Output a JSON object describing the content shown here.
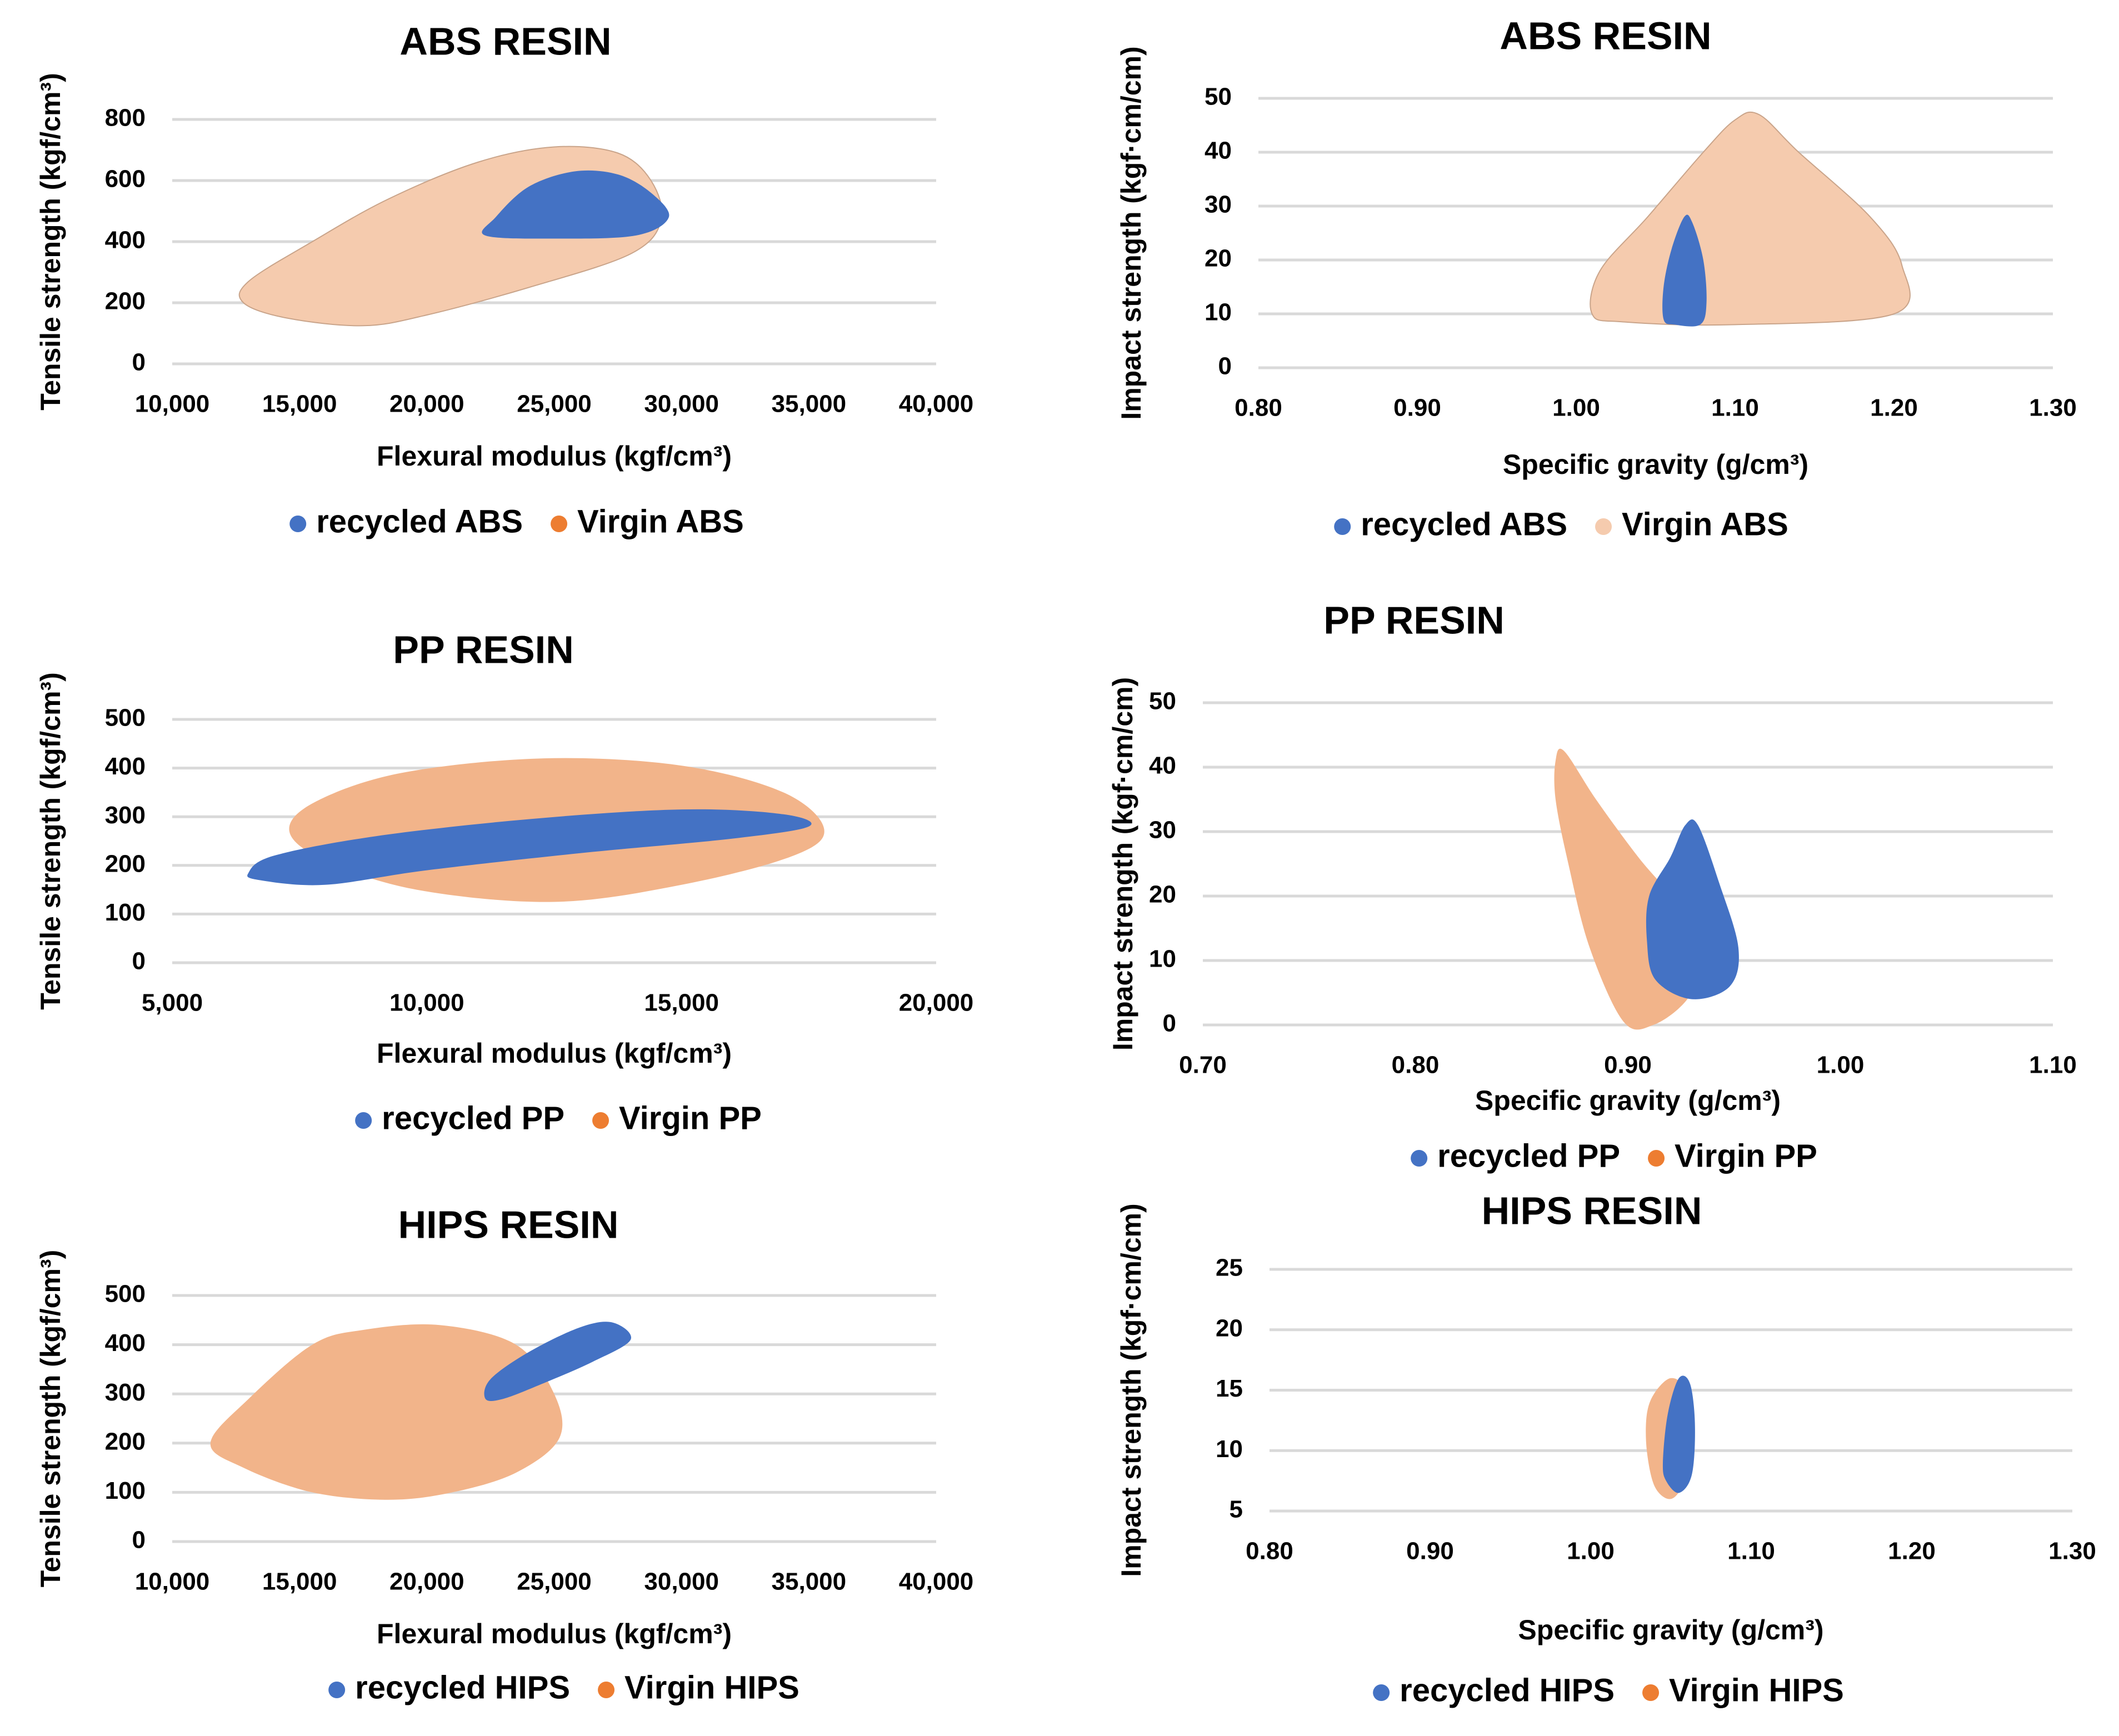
{
  "colors": {
    "recycled": "#4472C4",
    "virgin_light": "#F5CBAE",
    "virgin": "#F2B48A",
    "virgin_marker": "#ED7D31",
    "grid": "#D9D9D9"
  },
  "chart_data": [
    {
      "type": "area",
      "title": "ABS RESIN",
      "xlabel": "Flexural modulus (kgf/cm³)",
      "ylabel": "Tensile strength (kgf/cm³)",
      "xlim": [
        10000,
        40000
      ],
      "ylim": [
        0,
        800
      ],
      "xticks": [
        10000,
        15000,
        20000,
        25000,
        30000,
        35000,
        40000
      ],
      "xtick_labels": [
        "10,000",
        "15,000",
        "20,000",
        "25,000",
        "30,000",
        "35,000",
        "40,000"
      ],
      "yticks": [
        0,
        200,
        400,
        600,
        800
      ],
      "ytick_labels": [
        "0",
        "200",
        "400",
        "600",
        "800"
      ],
      "legend": [
        "recycled ABS",
        "Virgin ABS"
      ],
      "series": [
        {
          "name": "Virgin ABS",
          "color": "#F5CBAE",
          "outline": true,
          "points": [
            [
              12800,
              200
            ],
            [
              13000,
              270
            ],
            [
              15500,
              400
            ],
            [
              18500,
              540
            ],
            [
              22000,
              660
            ],
            [
              25000,
              710
            ],
            [
              27500,
              690
            ],
            [
              28800,
              600
            ],
            [
              29200,
              470
            ],
            [
              28000,
              360
            ],
            [
              24000,
              250
            ],
            [
              20000,
              160
            ],
            [
              17500,
              125
            ],
            [
              14500,
              150
            ]
          ]
        },
        {
          "name": "recycled ABS",
          "color": "#4472C4",
          "outline": false,
          "points": [
            [
              22300,
              420
            ],
            [
              22700,
              480
            ],
            [
              24000,
              580
            ],
            [
              25800,
              630
            ],
            [
              27500,
              620
            ],
            [
              28800,
              560
            ],
            [
              29500,
              480
            ],
            [
              28200,
              420
            ],
            [
              25000,
              410
            ]
          ]
        }
      ]
    },
    {
      "type": "area",
      "title": "ABS RESIN",
      "xlabel": "Specific gravity (g/cm³)",
      "ylabel": "Impact strength (kgf·cm/cm)",
      "xlim": [
        0.8,
        1.3
      ],
      "ylim": [
        0,
        50
      ],
      "xticks": [
        0.8,
        0.9,
        1.0,
        1.1,
        1.2,
        1.3
      ],
      "xtick_labels": [
        "0.80",
        "0.90",
        "1.00",
        "1.10",
        "1.20",
        "1.30"
      ],
      "yticks": [
        0,
        10,
        20,
        30,
        40,
        50
      ],
      "ytick_labels": [
        "0",
        "10",
        "20",
        "30",
        "40",
        "50"
      ],
      "legend": [
        "recycled ABS",
        "Virgin ABS"
      ],
      "series": [
        {
          "name": "Virgin ABS",
          "color": "#F5CBAE",
          "outline": true,
          "points": [
            [
              1.01,
              10
            ],
            [
              1.015,
              18
            ],
            [
              1.045,
              28
            ],
            [
              1.08,
              40
            ],
            [
              1.1,
              46
            ],
            [
              1.115,
              47
            ],
            [
              1.14,
              40
            ],
            [
              1.185,
              28
            ],
            [
              1.205,
              19
            ],
            [
              1.2,
              10
            ],
            [
              1.1,
              8
            ],
            [
              1.03,
              8.5
            ]
          ]
        },
        {
          "name": "recycled ABS",
          "color": "#4472C4",
          "outline": false,
          "points": [
            [
              1.055,
              9
            ],
            [
              1.055,
              15
            ],
            [
              1.06,
              22
            ],
            [
              1.068,
              28
            ],
            [
              1.073,
              27
            ],
            [
              1.08,
              20
            ],
            [
              1.082,
              12
            ],
            [
              1.078,
              8
            ],
            [
              1.062,
              8
            ]
          ]
        }
      ]
    },
    {
      "type": "area",
      "title": "PP RESIN",
      "xlabel": "Flexural modulus (kgf/cm³)",
      "ylabel": "Tensile strength (kgf/cm³)",
      "xlim": [
        5000,
        20000
      ],
      "ylim": [
        0,
        500
      ],
      "xticks": [
        5000,
        10000,
        15000,
        20000
      ],
      "xtick_labels": [
        "5,000",
        "10,000",
        "15,000",
        "20,000"
      ],
      "yticks": [
        0,
        100,
        200,
        300,
        400,
        500
      ],
      "ytick_labels": [
        "0",
        "100",
        "200",
        "300",
        "400",
        "500"
      ],
      "legend": [
        "recycled PP",
        "Virgin PP"
      ],
      "series": [
        {
          "name": "Virgin PP",
          "color": "#F2B48A",
          "outline": false,
          "points": [
            [
              7300,
              270
            ],
            [
              7800,
              330
            ],
            [
              9500,
              390
            ],
            [
              12300,
              420
            ],
            [
              15000,
              405
            ],
            [
              17000,
              350
            ],
            [
              17800,
              275
            ],
            [
              17200,
              220
            ],
            [
              15000,
              160
            ],
            [
              12500,
              125
            ],
            [
              9800,
              150
            ],
            [
              8000,
              210
            ]
          ]
        },
        {
          "name": "recycled PP",
          "color": "#4472C4",
          "outline": false,
          "points": [
            [
              6500,
              185
            ],
            [
              7000,
              220
            ],
            [
              9000,
              260
            ],
            [
              12000,
              295
            ],
            [
              15000,
              315
            ],
            [
              17000,
              305
            ],
            [
              17500,
              280
            ],
            [
              16000,
              255
            ],
            [
              13000,
              225
            ],
            [
              10000,
              190
            ],
            [
              8000,
              160
            ],
            [
              6700,
              170
            ]
          ]
        }
      ]
    },
    {
      "type": "area",
      "title": "PP RESIN",
      "xlabel": "Specific gravity (g/cm³)",
      "ylabel": "Impact strength (kgf·cm/cm)",
      "xlim": [
        0.7,
        1.1
      ],
      "ylim": [
        0,
        50
      ],
      "xticks": [
        0.7,
        0.8,
        0.9,
        1.0,
        1.1
      ],
      "xtick_labels": [
        "0.70",
        "0.80",
        "0.90",
        "1.00",
        "1.10"
      ],
      "yticks": [
        0,
        10,
        20,
        30,
        40,
        50
      ],
      "ytick_labels": [
        "0",
        "10",
        "20",
        "30",
        "40",
        "50"
      ],
      "legend": [
        "recycled PP",
        "Virgin PP"
      ],
      "series": [
        {
          "name": "Virgin PP",
          "color": "#F2B48A",
          "outline": false,
          "points": [
            [
              0.866,
              41
            ],
            [
              0.87,
              42.5
            ],
            [
              0.885,
              35
            ],
            [
              0.905,
              26
            ],
            [
              0.925,
              18
            ],
            [
              0.935,
              10
            ],
            [
              0.928,
              4
            ],
            [
              0.912,
              0
            ],
            [
              0.898,
              0.5
            ],
            [
              0.882,
              12
            ],
            [
              0.872,
              25
            ],
            [
              0.866,
              35
            ]
          ]
        },
        {
          "name": "recycled PP",
          "color": "#4472C4",
          "outline": false,
          "points": [
            [
              0.91,
              20
            ],
            [
              0.92,
              26
            ],
            [
              0.927,
              31
            ],
            [
              0.933,
              31
            ],
            [
              0.943,
              22
            ],
            [
              0.952,
              12
            ],
            [
              0.948,
              6
            ],
            [
              0.93,
              4
            ],
            [
              0.913,
              7
            ],
            [
              0.909,
              13
            ]
          ]
        }
      ]
    },
    {
      "type": "area",
      "title": "HIPS RESIN",
      "xlabel": "Flexural modulus (kgf/cm³)",
      "ylabel": "Tensile strength (kgf/cm³)",
      "xlim": [
        10000,
        40000
      ],
      "ylim": [
        0,
        500
      ],
      "xticks": [
        10000,
        15000,
        20000,
        25000,
        30000,
        35000,
        40000
      ],
      "xtick_labels": [
        "10,000",
        "15,000",
        "20,000",
        "25,000",
        "30,000",
        "35,000",
        "40,000"
      ],
      "yticks": [
        0,
        100,
        200,
        300,
        400,
        500
      ],
      "ytick_labels": [
        "0",
        "100",
        "200",
        "300",
        "400",
        "500"
      ],
      "legend": [
        "recycled HIPS",
        "Virgin HIPS"
      ],
      "series": [
        {
          "name": "Virgin HIPS",
          "color": "#F2B48A",
          "outline": false,
          "points": [
            [
              11500,
              200
            ],
            [
              13000,
              290
            ],
            [
              15500,
              400
            ],
            [
              17500,
              430
            ],
            [
              20500,
              440
            ],
            [
              23500,
              400
            ],
            [
              25000,
              300
            ],
            [
              25200,
              210
            ],
            [
              23500,
              140
            ],
            [
              21000,
              100
            ],
            [
              18500,
              85
            ],
            [
              15500,
              100
            ],
            [
              12800,
              150
            ]
          ]
        },
        {
          "name": "recycled HIPS",
          "color": "#4472C4",
          "outline": false,
          "points": [
            [
              22300,
              290
            ],
            [
              22500,
              330
            ],
            [
              24000,
              385
            ],
            [
              26000,
              435
            ],
            [
              27300,
              445
            ],
            [
              28000,
              410
            ],
            [
              26500,
              365
            ],
            [
              24500,
              320
            ],
            [
              23000,
              290
            ]
          ]
        }
      ]
    },
    {
      "type": "area",
      "title": "HIPS RESIN",
      "xlabel": "Specific gravity (g/cm³)",
      "ylabel": "Impact strength (kgf·cm/cm)",
      "xlim": [
        0.8,
        1.3
      ],
      "ylim": [
        5,
        25
      ],
      "xticks": [
        0.8,
        0.9,
        1.0,
        1.1,
        1.2,
        1.3
      ],
      "xtick_labels": [
        "0.80",
        "0.90",
        "1.00",
        "1.10",
        "1.20",
        "1.30"
      ],
      "yticks": [
        5,
        10,
        15,
        20,
        25
      ],
      "ytick_labels": [
        "5",
        "10",
        "15",
        "20",
        "25"
      ],
      "legend": [
        "recycled HIPS",
        "Virgin HIPS"
      ],
      "series": [
        {
          "name": "Virgin HIPS",
          "color": "#F2B48A",
          "outline": false,
          "points": [
            [
              1.035,
              13
            ],
            [
              1.04,
              14.8
            ],
            [
              1.05,
              16
            ],
            [
              1.058,
              15
            ],
            [
              1.06,
              11
            ],
            [
              1.058,
              7.5
            ],
            [
              1.05,
              6
            ],
            [
              1.04,
              7
            ],
            [
              1.035,
              10
            ]
          ]
        },
        {
          "name": "recycled HIPS",
          "color": "#4472C4",
          "outline": false,
          "points": [
            [
              1.045,
              9
            ],
            [
              1.048,
              13
            ],
            [
              1.055,
              16
            ],
            [
              1.062,
              15.5
            ],
            [
              1.065,
              12
            ],
            [
              1.063,
              8
            ],
            [
              1.055,
              6.5
            ],
            [
              1.047,
              7.5
            ]
          ]
        }
      ]
    }
  ]
}
